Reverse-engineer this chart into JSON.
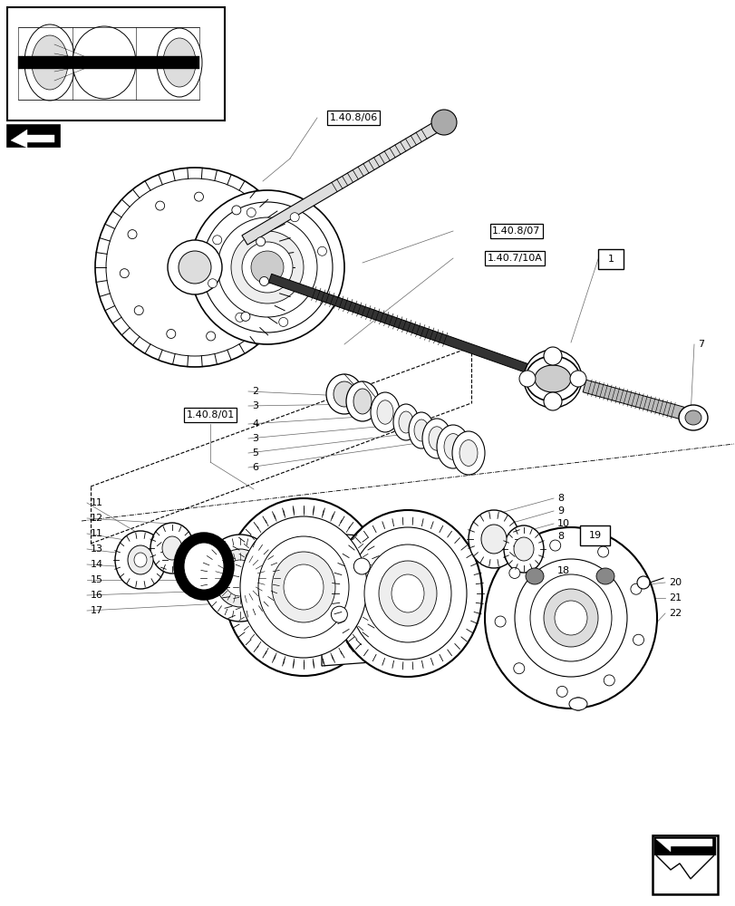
{
  "bg_color": "#ffffff",
  "lc": "#000000",
  "gray1": "#cccccc",
  "gray2": "#aaaaaa",
  "gray3": "#888888",
  "gray4": "#dddddd",
  "gray5": "#eeeeee"
}
